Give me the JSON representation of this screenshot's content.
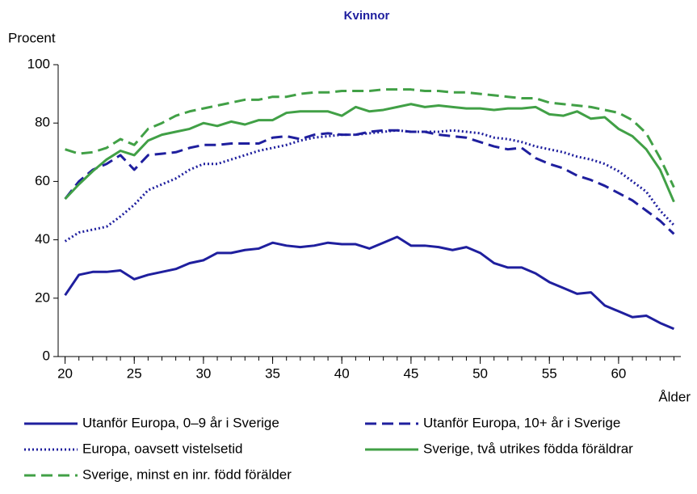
{
  "chart_data": {
    "type": "line",
    "title": "Kvinnor",
    "y_label": "Procent",
    "x_label": "Ålder",
    "x": [
      20,
      21,
      22,
      23,
      24,
      25,
      26,
      27,
      28,
      29,
      30,
      31,
      32,
      33,
      34,
      35,
      36,
      37,
      38,
      39,
      40,
      41,
      42,
      43,
      44,
      45,
      46,
      47,
      48,
      49,
      50,
      51,
      52,
      53,
      54,
      55,
      56,
      57,
      58,
      59,
      60,
      61,
      62,
      63,
      64
    ],
    "xlim": [
      19.5,
      64.5
    ],
    "xticks": [
      20,
      25,
      30,
      35,
      40,
      45,
      50,
      55,
      60
    ],
    "ylim": [
      0,
      100
    ],
    "yticks": [
      0,
      20,
      40,
      60,
      80,
      100
    ],
    "grid": false,
    "series": [
      {
        "name": "Utanför Europa, 0–9 år i Sverige",
        "color": "#1f1f9e",
        "dash": "solid",
        "values": [
          21,
          28,
          29,
          29,
          29.5,
          26.5,
          28,
          29,
          30,
          32,
          33,
          35.5,
          35.5,
          36.5,
          37,
          39,
          38,
          37.5,
          38,
          39,
          38.5,
          38.5,
          37,
          39,
          41,
          38,
          38,
          37.5,
          36.5,
          37.5,
          35.5,
          32,
          30.5,
          30.5,
          28.5,
          25.5,
          23.5,
          21.5,
          22,
          17.5,
          15.5,
          13.5,
          14,
          11.5,
          9.5
        ]
      },
      {
        "name": "Utanför Europa, 10+ år i Sverige",
        "color": "#1f1f9e",
        "dash": "dashed",
        "values": [
          54,
          60,
          64,
          66,
          69,
          64,
          69,
          69.5,
          70,
          71.5,
          72.5,
          72.5,
          73,
          73,
          73,
          75,
          75.5,
          74.5,
          76,
          76.5,
          76,
          76,
          77,
          77.5,
          77.5,
          77,
          77,
          76,
          75.5,
          75,
          73.5,
          72,
          71,
          71.5,
          68,
          66,
          64.5,
          62,
          60.5,
          58.5,
          56,
          53.5,
          50,
          46.5,
          42
        ]
      },
      {
        "name": "Europa, oavsett vistelsetid",
        "color": "#1f1f9e",
        "dash": "dotted",
        "values": [
          39.5,
          42.5,
          43.5,
          44.5,
          48,
          52,
          57,
          59,
          61,
          64,
          66,
          66,
          67.5,
          69,
          70.5,
          71.5,
          72.5,
          74,
          75,
          75.5,
          76,
          76,
          76.5,
          77,
          77.5,
          77,
          77,
          77,
          77.5,
          77,
          76.5,
          75,
          74.5,
          73.5,
          72,
          71,
          70,
          68.5,
          67.5,
          66,
          63.5,
          60,
          56.5,
          50,
          45
        ]
      },
      {
        "name": "Sverige, två utrikes födda föräldrar",
        "color": "#41a046",
        "dash": "solid",
        "values": [
          54,
          59,
          63.5,
          67.5,
          70.5,
          69,
          74,
          76,
          77,
          78,
          80,
          79,
          80.5,
          79.5,
          81,
          81,
          83.5,
          84,
          84,
          84,
          82.5,
          85.5,
          84,
          84.5,
          85.5,
          86.5,
          85.5,
          86,
          85.5,
          85,
          85,
          84.5,
          85,
          85,
          85.5,
          83,
          82.5,
          84,
          81.5,
          82,
          78,
          75.5,
          71,
          64,
          53
        ]
      },
      {
        "name": "Sverige, minst en inr. född förälder",
        "color": "#41a046",
        "dash": "dashed",
        "values": [
          71,
          69.5,
          70,
          71.5,
          74.5,
          72.5,
          78,
          80,
          82.5,
          84,
          85,
          86,
          87,
          88,
          88,
          89,
          89,
          90,
          90.5,
          90.5,
          91,
          91,
          91,
          91.5,
          91.5,
          91.5,
          91,
          91,
          90.5,
          90.5,
          90,
          89.5,
          89,
          88.5,
          88.5,
          87,
          86.5,
          86,
          85.5,
          84.5,
          83.5,
          81,
          76.5,
          68,
          58
        ]
      }
    ]
  }
}
